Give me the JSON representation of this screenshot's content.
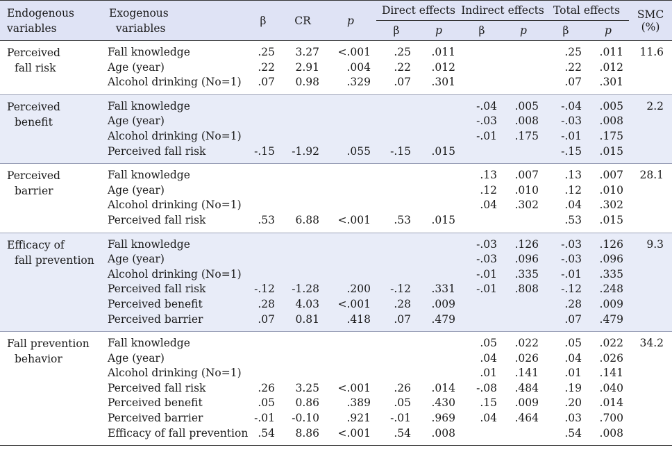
{
  "headers": {
    "endogenous": "Endogenous variables",
    "endogenous_l1": "Endogenous",
    "endogenous_l2": "variables",
    "exogenous_l1": "Exogenous",
    "exogenous_l2": "variables",
    "beta": "β",
    "cr": "CR",
    "p": "p",
    "direct": "Direct effects",
    "indirect": "Indirect effects",
    "total": "Total effects",
    "smc_l1": "SMC",
    "smc_l2": "(%)"
  },
  "groups": [
    {
      "endo_l1": "Perceived",
      "endo_l2": "fall risk",
      "smc": "11.6",
      "shade": false,
      "rows": [
        {
          "exo": "Fall knowledge",
          "beta": ".25",
          "cr": "3.27",
          "p": "<.001",
          "d_b": ".25",
          "d_p": ".011",
          "i_b": "",
          "i_p": "",
          "t_b": ".25",
          "t_p": ".011"
        },
        {
          "exo": "Age (year)",
          "beta": ".22",
          "cr": "2.91",
          "p": ".004",
          "d_b": ".22",
          "d_p": ".012",
          "i_b": "",
          "i_p": "",
          "t_b": ".22",
          "t_p": ".012"
        },
        {
          "exo": "Alcohol drinking (No=1)",
          "beta": ".07",
          "cr": "0.98",
          "p": ".329",
          "d_b": ".07",
          "d_p": ".301",
          "i_b": "",
          "i_p": "",
          "t_b": ".07",
          "t_p": ".301"
        }
      ]
    },
    {
      "endo_l1": "Perceived",
      "endo_l2": "benefit",
      "smc": "2.2",
      "shade": true,
      "rows": [
        {
          "exo": "Fall knowledge",
          "beta": "",
          "cr": "",
          "p": "",
          "d_b": "",
          "d_p": "",
          "i_b": "-.04",
          "i_p": ".005",
          "t_b": "-.04",
          "t_p": ".005"
        },
        {
          "exo": "Age (year)",
          "beta": "",
          "cr": "",
          "p": "",
          "d_b": "",
          "d_p": "",
          "i_b": "-.03",
          "i_p": ".008",
          "t_b": "-.03",
          "t_p": ".008"
        },
        {
          "exo": "Alcohol drinking (No=1)",
          "beta": "",
          "cr": "",
          "p": "",
          "d_b": "",
          "d_p": "",
          "i_b": "-.01",
          "i_p": ".175",
          "t_b": "-.01",
          "t_p": ".175"
        },
        {
          "exo": "Perceived fall risk",
          "beta": "-.15",
          "cr": "-1.92",
          "p": ".055",
          "d_b": "-.15",
          "d_p": ".015",
          "i_b": "",
          "i_p": "",
          "t_b": "-.15",
          "t_p": ".015"
        }
      ]
    },
    {
      "endo_l1": "Perceived",
      "endo_l2": "barrier",
      "smc": "28.1",
      "shade": false,
      "rows": [
        {
          "exo": "Fall knowledge",
          "beta": "",
          "cr": "",
          "p": "",
          "d_b": "",
          "d_p": "",
          "i_b": ".13",
          "i_p": ".007",
          "t_b": ".13",
          "t_p": ".007"
        },
        {
          "exo": "Age (year)",
          "beta": "",
          "cr": "",
          "p": "",
          "d_b": "",
          "d_p": "",
          "i_b": ".12",
          "i_p": ".010",
          "t_b": ".12",
          "t_p": ".010"
        },
        {
          "exo": "Alcohol drinking (No=1)",
          "beta": "",
          "cr": "",
          "p": "",
          "d_b": "",
          "d_p": "",
          "i_b": ".04",
          "i_p": ".302",
          "t_b": ".04",
          "t_p": ".302"
        },
        {
          "exo": "Perceived fall risk",
          "beta": ".53",
          "cr": "6.88",
          "p": "<.001",
          "d_b": ".53",
          "d_p": ".015",
          "i_b": "",
          "i_p": "",
          "t_b": ".53",
          "t_p": ".015"
        }
      ]
    },
    {
      "endo_l1": "Efficacy of",
      "endo_l2": "fall prevention",
      "smc": "9.3",
      "shade": true,
      "rows": [
        {
          "exo": "Fall knowledge",
          "beta": "",
          "cr": "",
          "p": "",
          "d_b": "",
          "d_p": "",
          "i_b": "-.03",
          "i_p": ".126",
          "t_b": "-.03",
          "t_p": ".126"
        },
        {
          "exo": "Age (year)",
          "beta": "",
          "cr": "",
          "p": "",
          "d_b": "",
          "d_p": "",
          "i_b": "-.03",
          "i_p": ".096",
          "t_b": "-.03",
          "t_p": ".096"
        },
        {
          "exo": "Alcohol drinking (No=1)",
          "beta": "",
          "cr": "",
          "p": "",
          "d_b": "",
          "d_p": "",
          "i_b": "-.01",
          "i_p": ".335",
          "t_b": "-.01",
          "t_p": ".335"
        },
        {
          "exo": "Perceived fall risk",
          "beta": "-.12",
          "cr": "-1.28",
          "p": ".200",
          "d_b": "-.12",
          "d_p": ".331",
          "i_b": "-.01",
          "i_p": ".808",
          "t_b": "-.12",
          "t_p": ".248"
        },
        {
          "exo": "Perceived benefit",
          "beta": ".28",
          "cr": "4.03",
          "p": "<.001",
          "d_b": ".28",
          "d_p": ".009",
          "i_b": "",
          "i_p": "",
          "t_b": ".28",
          "t_p": ".009"
        },
        {
          "exo": "Perceived barrier",
          "beta": ".07",
          "cr": "0.81",
          "p": ".418",
          "d_b": ".07",
          "d_p": ".479",
          "i_b": "",
          "i_p": "",
          "t_b": ".07",
          "t_p": ".479"
        }
      ]
    },
    {
      "endo_l1": "Fall prevention",
      "endo_l2": "behavior",
      "smc": "34.2",
      "shade": false,
      "rows": [
        {
          "exo": "Fall knowledge",
          "beta": "",
          "cr": "",
          "p": "",
          "d_b": "",
          "d_p": "",
          "i_b": ".05",
          "i_p": ".022",
          "t_b": ".05",
          "t_p": ".022"
        },
        {
          "exo": "Age (year)",
          "beta": "",
          "cr": "",
          "p": "",
          "d_b": "",
          "d_p": "",
          "i_b": ".04",
          "i_p": ".026",
          "t_b": ".04",
          "t_p": ".026"
        },
        {
          "exo": "Alcohol drinking (No=1)",
          "beta": "",
          "cr": "",
          "p": "",
          "d_b": "",
          "d_p": "",
          "i_b": ".01",
          "i_p": ".141",
          "t_b": ".01",
          "t_p": ".141"
        },
        {
          "exo": "Perceived fall risk",
          "beta": ".26",
          "cr": "3.25",
          "p": "<.001",
          "d_b": ".26",
          "d_p": ".014",
          "i_b": "-.08",
          "i_p": ".484",
          "t_b": ".19",
          "t_p": ".040"
        },
        {
          "exo": "Perceived benefit",
          "beta": ".05",
          "cr": "0.86",
          "p": ".389",
          "d_b": ".05",
          "d_p": ".430",
          "i_b": ".15",
          "i_p": ".009",
          "t_b": ".20",
          "t_p": ".014"
        },
        {
          "exo": "Perceived barrier",
          "beta": "-.01",
          "cr": "-0.10",
          "p": ".921",
          "d_b": "-.01",
          "d_p": ".969",
          "i_b": ".04",
          "i_p": ".464",
          "t_b": ".03",
          "t_p": ".700"
        },
        {
          "exo": "Efficacy of fall prevention",
          "beta": ".54",
          "cr": "8.86",
          "p": "<.001",
          "d_b": ".54",
          "d_p": ".008",
          "i_b": "",
          "i_p": "",
          "t_b": ".54",
          "t_p": ".008"
        }
      ]
    }
  ]
}
